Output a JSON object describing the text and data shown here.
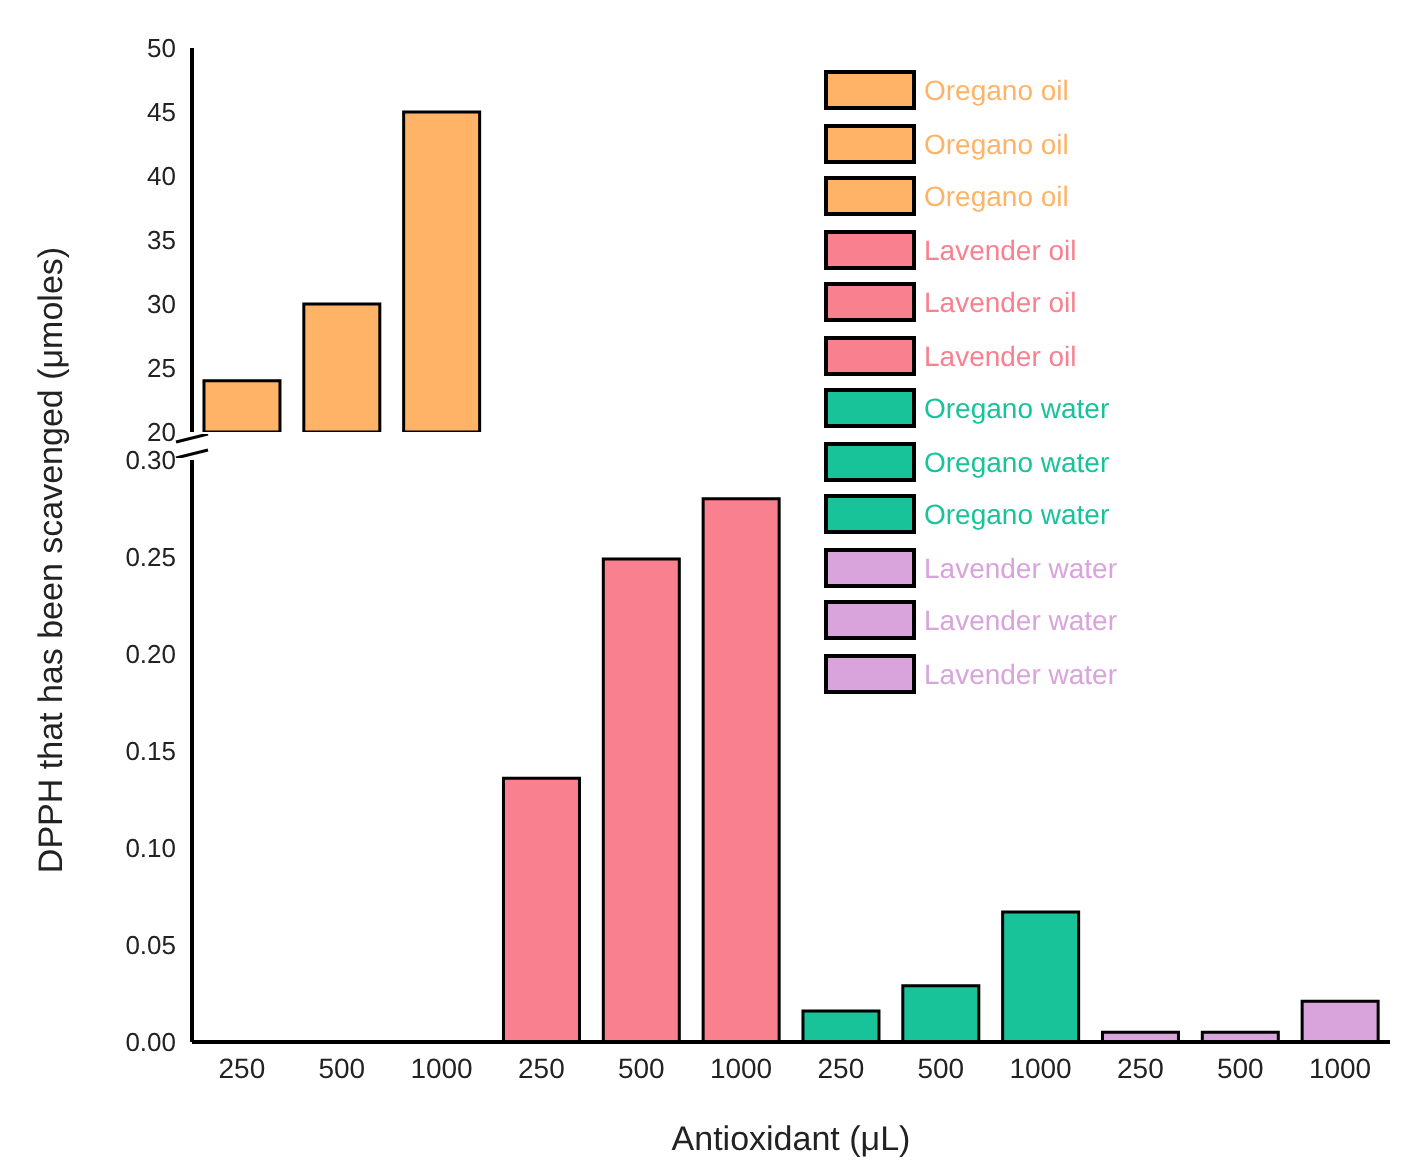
{
  "chart_data": [
    {
      "type": "bar",
      "stacked": true,
      "tick_labels": "y",
      "legend": "right",
      "categories": [
        "250",
        "500",
        "1000",
        "250",
        "500",
        "1000",
        "250",
        "500",
        "1000",
        "250",
        "500",
        "1000"
      ],
      "ylim": [
        20,
        50
      ],
      "yticks": [
        20,
        25,
        30,
        35,
        40,
        45,
        50
      ],
      "series": [
        {
          "name": "Oregano oil",
          "color": "#ffb366",
          "values": [
            24,
            null,
            null,
            null,
            null,
            null,
            null,
            null,
            null,
            null,
            null,
            null
          ]
        },
        {
          "name": "Oregano oil",
          "color": "#ffb366",
          "values": [
            null,
            30,
            null,
            null,
            null,
            null,
            null,
            null,
            null,
            null,
            null,
            null
          ]
        },
        {
          "name": "Oregano oil",
          "color": "#ffb366",
          "values": [
            null,
            null,
            45,
            null,
            null,
            null,
            null,
            null,
            null,
            null,
            null,
            null
          ]
        },
        {
          "name": "Lavender oil",
          "color": "#f8808f",
          "values": [
            null,
            null,
            null,
            null,
            null,
            null,
            null,
            null,
            null,
            null,
            null,
            null
          ]
        },
        {
          "name": "Lavender oil",
          "color": "#f8808f",
          "values": [
            null,
            null,
            null,
            null,
            null,
            null,
            null,
            null,
            null,
            null,
            null,
            null
          ]
        },
        {
          "name": "Lavender oil",
          "color": "#f8808f",
          "values": [
            null,
            null,
            null,
            null,
            null,
            null,
            null,
            null,
            null,
            null,
            null,
            null
          ]
        },
        {
          "name": "Oregano water",
          "color": "#19c39a",
          "values": [
            null,
            null,
            null,
            null,
            null,
            null,
            null,
            null,
            null,
            null,
            null,
            null
          ]
        },
        {
          "name": "Oregano water",
          "color": "#19c39a",
          "values": [
            null,
            null,
            null,
            null,
            null,
            null,
            null,
            null,
            null,
            null,
            null,
            null
          ]
        },
        {
          "name": "Oregano water",
          "color": "#19c39a",
          "values": [
            null,
            null,
            null,
            null,
            null,
            null,
            null,
            null,
            null,
            null,
            null,
            null
          ]
        },
        {
          "name": "Lavender water",
          "color": "#d9a3dc",
          "values": [
            null,
            null,
            null,
            null,
            null,
            null,
            null,
            null,
            null,
            null,
            null,
            null
          ]
        },
        {
          "name": "Lavender water",
          "color": "#d9a3dc",
          "values": [
            null,
            null,
            null,
            null,
            null,
            null,
            null,
            null,
            null,
            null,
            null,
            null
          ]
        },
        {
          "name": "Lavender water",
          "color": "#d9a3dc",
          "values": [
            null,
            null,
            null,
            null,
            null,
            null,
            null,
            null,
            null,
            null,
            null,
            null
          ]
        }
      ]
    },
    {
      "type": "bar",
      "stacked": true,
      "xlabel": "Antioxidant (μL)",
      "ylabel": "DPPH that has been scavenged (μmoles)",
      "categories": [
        "250",
        "500",
        "1000",
        "250",
        "500",
        "1000",
        "250",
        "500",
        "1000",
        "250",
        "500",
        "1000"
      ],
      "ylim": [
        0,
        0.3
      ],
      "yticks": [
        {
          "value": 0,
          "label": "0.00"
        },
        {
          "value": 0.05,
          "label": "0.05"
        },
        {
          "value": 0.1,
          "label": "0.10"
        },
        {
          "value": 0.15,
          "label": "0.15"
        },
        {
          "value": 0.2,
          "label": "0.20"
        },
        {
          "value": 0.25,
          "label": "0.25"
        },
        {
          "value": 0.3,
          "label": "0.30"
        }
      ],
      "series": [
        {
          "color": "#ffb366",
          "values": [
            null,
            null,
            null,
            null,
            null,
            null,
            null,
            null,
            null,
            null,
            null,
            null
          ]
        },
        {
          "color": "#ffb366",
          "values": [
            null,
            null,
            null,
            null,
            null,
            null,
            null,
            null,
            null,
            null,
            null,
            null
          ]
        },
        {
          "color": "#ffb366",
          "values": [
            null,
            null,
            null,
            null,
            null,
            null,
            null,
            null,
            null,
            null,
            null,
            null
          ]
        },
        {
          "color": "#f8808f",
          "values": [
            null,
            null,
            null,
            0.136,
            null,
            null,
            null,
            null,
            null,
            null,
            null,
            null
          ]
        },
        {
          "color": "#f8808f",
          "values": [
            null,
            null,
            null,
            null,
            0.249,
            null,
            null,
            null,
            null,
            null,
            null,
            null
          ]
        },
        {
          "color": "#f8808f",
          "values": [
            null,
            null,
            null,
            null,
            null,
            0.28,
            null,
            null,
            null,
            null,
            null,
            null
          ]
        },
        {
          "color": "#19c39a",
          "values": [
            null,
            null,
            null,
            null,
            null,
            null,
            0.016,
            null,
            null,
            null,
            null,
            null
          ]
        },
        {
          "color": "#19c39a",
          "values": [
            null,
            null,
            null,
            null,
            null,
            null,
            null,
            0.029,
            null,
            null,
            null,
            null
          ]
        },
        {
          "color": "#19c39a",
          "values": [
            null,
            null,
            null,
            null,
            null,
            null,
            null,
            null,
            0.067,
            null,
            null,
            null
          ]
        },
        {
          "color": "#d9a3dc",
          "values": [
            null,
            null,
            null,
            null,
            null,
            null,
            null,
            null,
            null,
            0.005,
            null,
            null
          ]
        },
        {
          "color": "#d9a3dc",
          "values": [
            null,
            null,
            null,
            null,
            null,
            null,
            null,
            null,
            null,
            null,
            0.005,
            null
          ]
        },
        {
          "color": "#d9a3dc",
          "values": [
            null,
            null,
            null,
            null,
            null,
            null,
            null,
            null,
            null,
            null,
            null,
            0.021
          ]
        }
      ]
    }
  ]
}
